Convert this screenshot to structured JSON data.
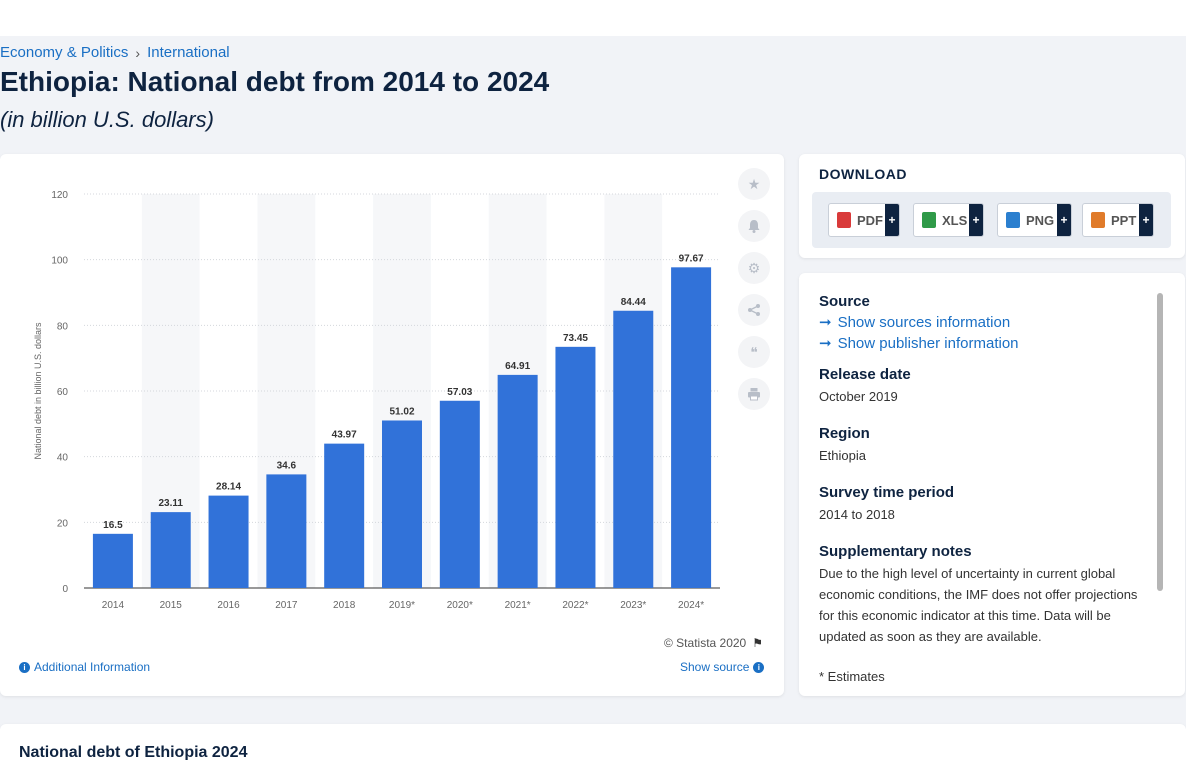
{
  "breadcrumb": {
    "items": [
      "Economy & Politics",
      "International"
    ],
    "separator": "›"
  },
  "page": {
    "title": "Ethiopia: National debt from 2014 to 2024",
    "subtitle": "(in billion U.S. dollars)"
  },
  "chart_data": {
    "type": "bar",
    "categories": [
      "2014",
      "2015",
      "2016",
      "2017",
      "2018",
      "2019*",
      "2020*",
      "2021*",
      "2022*",
      "2023*",
      "2024*"
    ],
    "values": [
      16.5,
      23.11,
      28.14,
      34.6,
      43.97,
      51.02,
      57.03,
      64.91,
      73.45,
      84.44,
      97.67
    ],
    "value_labels": [
      "16.5",
      "23.11",
      "28.14",
      "34.6",
      "43.97",
      "51.02",
      "57.03",
      "64.91",
      "73.45",
      "84.44",
      "97.67"
    ],
    "ylabel": "National debt in billion U.S. dollars",
    "xlabel": "",
    "ylim": [
      0,
      120
    ],
    "yticks": [
      0,
      20,
      40,
      60,
      80,
      100,
      120
    ],
    "bar_color": "#3172d9",
    "grid": true,
    "legend": "none"
  },
  "chart_footer": {
    "copyright": "© Statista 2020",
    "additional_info": "Additional Information",
    "show_source": "Show source"
  },
  "tools": {
    "icons": [
      "star-icon",
      "bell-icon",
      "gear-icon",
      "share-icon",
      "quote-icon",
      "print-icon"
    ]
  },
  "download": {
    "title": "DOWNLOAD",
    "buttons": [
      {
        "label": "PDF",
        "color": "#d93a3a"
      },
      {
        "label": "XLS",
        "color": "#2f9a48"
      },
      {
        "label": "PNG",
        "color": "#2b7fcf"
      },
      {
        "label": "PPT",
        "color": "#e07b2a"
      }
    ],
    "plus": "+"
  },
  "info": {
    "source_heading": "Source",
    "show_sources": "Show sources information",
    "show_publisher": "Show publisher information",
    "release_heading": "Release date",
    "release_value": "October 2019",
    "region_heading": "Region",
    "region_value": "Ethiopia",
    "survey_heading": "Survey time period",
    "survey_value": "2014 to 2018",
    "notes_heading": "Supplementary notes",
    "notes_value": "Due to the high level of uncertainty in current global economic conditions, the IMF does not offer projections for this economic indicator at this time. Data will be updated as soon as they are available.",
    "estimated": "* Estimates"
  },
  "bottom": {
    "title": "National debt of Ethiopia 2024"
  },
  "colors": {
    "accent": "#1a6fc4",
    "navy": "#0e2340"
  }
}
